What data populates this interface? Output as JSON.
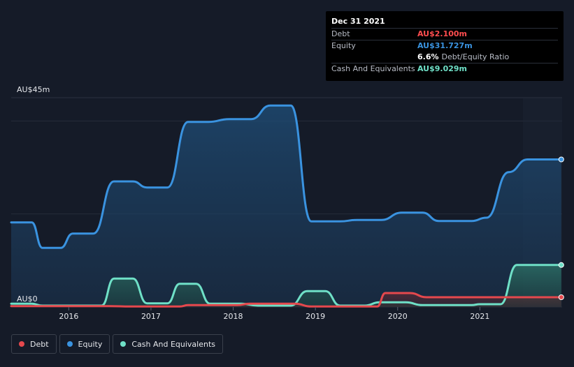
{
  "chart_data": {
    "type": "area",
    "title": "",
    "xlabel": "",
    "ylabel": "",
    "y_top_label": "AU$45m",
    "y_bottom_label": "AU$0",
    "ylim": [
      0,
      45
    ],
    "xlim": [
      2015.3,
      2022.0
    ],
    "x_ticks": [
      {
        "value": 2016.0,
        "label": "2016"
      },
      {
        "value": 2017.0,
        "label": "2017"
      },
      {
        "value": 2018.0,
        "label": "2018"
      },
      {
        "value": 2019.0,
        "label": "2019"
      },
      {
        "value": 2020.0,
        "label": "2020"
      },
      {
        "value": 2021.0,
        "label": "2021"
      }
    ],
    "grid_values": [
      0,
      20,
      40
    ],
    "series": [
      {
        "name": "Equity",
        "color": "#3a93e0",
        "points": [
          [
            2015.3,
            18.2
          ],
          [
            2015.55,
            18.2
          ],
          [
            2015.68,
            12.7
          ],
          [
            2015.9,
            12.7
          ],
          [
            2016.05,
            15.8
          ],
          [
            2016.3,
            15.8
          ],
          [
            2016.55,
            27.0
          ],
          [
            2016.78,
            27.0
          ],
          [
            2016.95,
            25.7
          ],
          [
            2017.2,
            25.7
          ],
          [
            2017.45,
            39.8
          ],
          [
            2017.7,
            39.8
          ],
          [
            2017.95,
            40.4
          ],
          [
            2018.22,
            40.4
          ],
          [
            2018.45,
            43.3
          ],
          [
            2018.7,
            43.3
          ],
          [
            2018.95,
            18.4
          ],
          [
            2019.3,
            18.4
          ],
          [
            2019.5,
            18.7
          ],
          [
            2019.8,
            18.7
          ],
          [
            2020.05,
            20.3
          ],
          [
            2020.3,
            20.3
          ],
          [
            2020.5,
            18.5
          ],
          [
            2020.9,
            18.5
          ],
          [
            2021.08,
            19.2
          ],
          [
            2021.35,
            29.0
          ],
          [
            2021.58,
            31.727
          ],
          [
            2021.99,
            31.727
          ]
        ]
      },
      {
        "name": "Cash And Equivalents",
        "color": "#6fe0c7",
        "points": [
          [
            2015.3,
            0.7
          ],
          [
            2015.55,
            0.7
          ],
          [
            2015.68,
            0.3
          ],
          [
            2016.4,
            0.3
          ],
          [
            2016.55,
            6.1
          ],
          [
            2016.78,
            6.1
          ],
          [
            2016.95,
            0.8
          ],
          [
            2017.2,
            0.8
          ],
          [
            2017.35,
            5.0
          ],
          [
            2017.55,
            5.0
          ],
          [
            2017.72,
            0.7
          ],
          [
            2018.1,
            0.7
          ],
          [
            2018.3,
            0.3
          ],
          [
            2018.7,
            0.3
          ],
          [
            2018.9,
            3.4
          ],
          [
            2019.12,
            3.4
          ],
          [
            2019.3,
            0.3
          ],
          [
            2019.6,
            0.3
          ],
          [
            2019.78,
            1.0
          ],
          [
            2020.1,
            1.0
          ],
          [
            2020.3,
            0.4
          ],
          [
            2020.9,
            0.4
          ],
          [
            2021.0,
            0.6
          ],
          [
            2021.25,
            0.6
          ],
          [
            2021.45,
            9.029
          ],
          [
            2021.99,
            9.029
          ]
        ]
      },
      {
        "name": "Debt",
        "color": "#e5484d",
        "points": [
          [
            2015.3,
            0.2
          ],
          [
            2016.5,
            0.2
          ],
          [
            2016.75,
            0.1
          ],
          [
            2017.35,
            0.1
          ],
          [
            2017.45,
            0.4
          ],
          [
            2018.05,
            0.4
          ],
          [
            2018.2,
            0.7
          ],
          [
            2018.75,
            0.7
          ],
          [
            2018.95,
            0.1
          ],
          [
            2019.75,
            0.1
          ],
          [
            2019.85,
            3.0
          ],
          [
            2020.15,
            3.0
          ],
          [
            2020.35,
            2.1
          ],
          [
            2021.99,
            2.1
          ]
        ]
      }
    ],
    "legend": {
      "placement": "bottom-left",
      "items": [
        {
          "name": "Debt",
          "color": "#e5484d"
        },
        {
          "name": "Equity",
          "color": "#3a93e0"
        },
        {
          "name": "Cash And Equivalents",
          "color": "#6fe0c7"
        }
      ]
    },
    "tooltip": {
      "date": "Dec 31 2021",
      "rows": [
        {
          "label": "Debt",
          "value": "AU$2.100m",
          "color": "#ff4d4f"
        },
        {
          "label": "Equity",
          "value": "AU$31.727m",
          "color": "#3a93e0"
        }
      ],
      "ratio_value": "6.6%",
      "ratio_label": "Debt/Equity Ratio",
      "cash_label": "Cash And Equivalents",
      "cash_value": "AU$9.029m",
      "cash_color": "#6fe0c7"
    }
  }
}
